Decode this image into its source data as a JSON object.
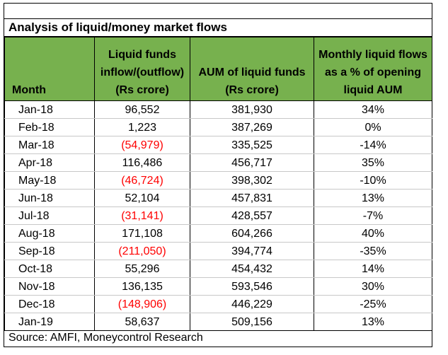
{
  "title": "Analysis of liquid/money market flows",
  "headers": [
    "Month",
    "Liquid funds inflow/(outflow) (Rs crore)",
    "AUM of liquid funds (Rs crore)",
    "Monthly liquid flows as a % of opening liquid AUM"
  ],
  "rows": [
    {
      "month": "Jan-18",
      "flow": "96,552",
      "aum": "381,930",
      "pct": "34%",
      "negative": false
    },
    {
      "month": "Feb-18",
      "flow": "1,223",
      "aum": "387,269",
      "pct": "0%",
      "negative": false
    },
    {
      "month": "Mar-18",
      "flow": "(54,979)",
      "aum": "335,525",
      "pct": "-14%",
      "negative": true
    },
    {
      "month": "Apr-18",
      "flow": "116,486",
      "aum": "456,717",
      "pct": "35%",
      "negative": false
    },
    {
      "month": "May-18",
      "flow": "(46,724)",
      "aum": "398,302",
      "pct": "-10%",
      "negative": true
    },
    {
      "month": "Jun-18",
      "flow": "52,104",
      "aum": "457,831",
      "pct": "13%",
      "negative": false
    },
    {
      "month": "Jul-18",
      "flow": "(31,141)",
      "aum": "428,557",
      "pct": "-7%",
      "negative": true
    },
    {
      "month": "Aug-18",
      "flow": "171,108",
      "aum": "604,266",
      "pct": "40%",
      "negative": false
    },
    {
      "month": "Sep-18",
      "flow": "(211,050)",
      "aum": "394,774",
      "pct": "-35%",
      "negative": true
    },
    {
      "month": "Oct-18",
      "flow": "55,296",
      "aum": "454,432",
      "pct": "14%",
      "negative": false
    },
    {
      "month": "Nov-18",
      "flow": "136,135",
      "aum": "593,546",
      "pct": "30%",
      "negative": false
    },
    {
      "month": "Dec-18",
      "flow": "(148,906)",
      "aum": "446,229",
      "pct": "-25%",
      "negative": true
    },
    {
      "month": "Jan-19",
      "flow": "58,637",
      "aum": "509,156",
      "pct": "13%",
      "negative": false
    }
  ],
  "source": "Source: AMFI, Moneycontrol Research",
  "colors": {
    "header_bg": "#77b14e",
    "negative_text": "#ff0000"
  }
}
